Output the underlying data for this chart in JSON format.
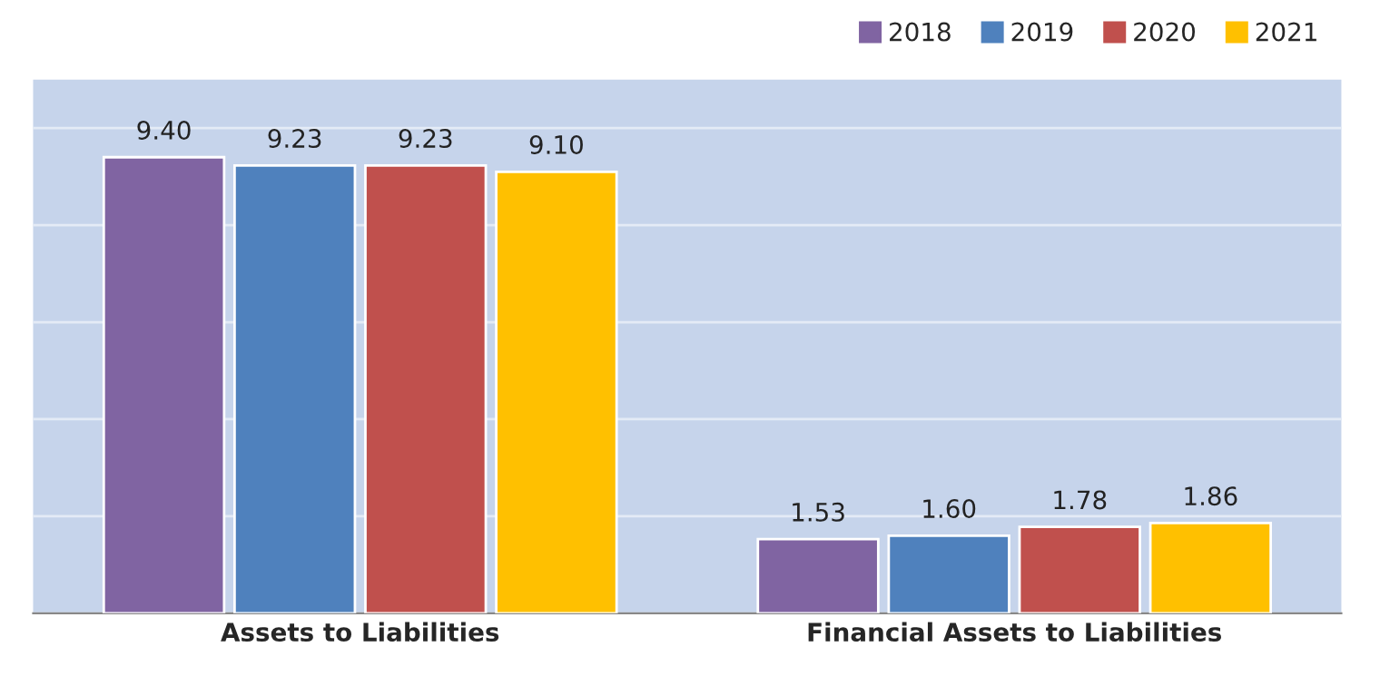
{
  "chart_data": {
    "type": "bar",
    "categories": [
      "Assets to Liabilities",
      "Financial Assets to Liabilities"
    ],
    "series": [
      {
        "name": "2018",
        "color": "#8064a2",
        "values": [
          9.4,
          1.53
        ],
        "value_labels": [
          "9.40",
          "1.53"
        ]
      },
      {
        "name": "2019",
        "color": "#4f81bd",
        "values": [
          9.23,
          1.6
        ],
        "value_labels": [
          "9.23",
          "1.60"
        ]
      },
      {
        "name": "2020",
        "color": "#c0504d",
        "values": [
          9.23,
          1.78
        ],
        "value_labels": [
          "9.23",
          "1.78"
        ]
      },
      {
        "name": "2021",
        "color": "#ffc000",
        "values": [
          9.1,
          1.86
        ],
        "value_labels": [
          "9.10",
          "1.86"
        ]
      }
    ],
    "ylim": [
      0,
      11
    ],
    "yticks": [
      {
        "value": 0,
        "label": null
      },
      {
        "value": 2,
        "label": null
      },
      {
        "value": 4,
        "label": null
      },
      {
        "value": 6,
        "label": null
      },
      {
        "value": 8,
        "label": null
      },
      {
        "value": 10,
        "label": null
      }
    ],
    "grid": "y",
    "legend": "top right",
    "tick_labels": "x"
  }
}
